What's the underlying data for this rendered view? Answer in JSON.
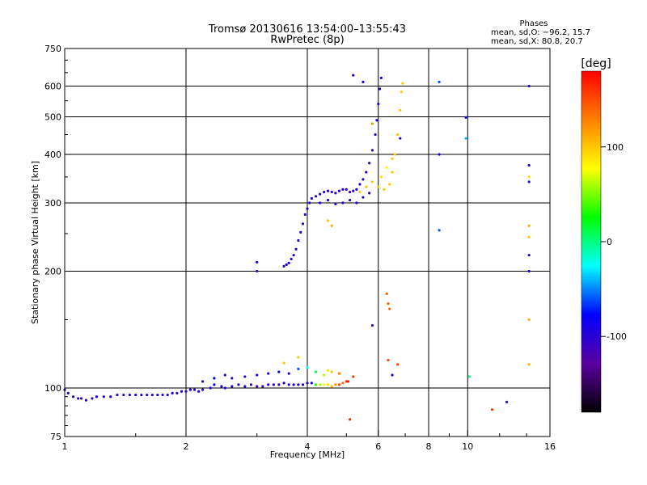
{
  "chart_data": {
    "type": "scatter",
    "title": "Tromsø 20130616 13:54:00–13:55:43",
    "subtitle": "RwPretec (8p)",
    "xlabel": "Frequency [MHz]",
    "ylabel": "Stationary phase Virtual Height [km]",
    "x_scale": "log",
    "y_scale": "log",
    "xlim": [
      1,
      16
    ],
    "ylim": [
      75,
      750
    ],
    "x_ticks": [
      1,
      2,
      4,
      6,
      8,
      10,
      16
    ],
    "y_ticks": [
      75,
      100,
      200,
      300,
      400,
      500,
      600,
      750
    ],
    "grid": true,
    "phases_box": {
      "title": "Phases",
      "line1": "mean, sd,O: −96.2, 15.7",
      "line2": "mean, sd,X:  80.8, 20.7"
    },
    "colorbar": {
      "label": "[deg]",
      "range": [
        -180,
        180
      ],
      "ticks": [
        100,
        0,
        -100
      ],
      "colors": [
        "#000000",
        "#5a00a0",
        "#0000ff",
        "#00ffff",
        "#00ff00",
        "#ffff00",
        "#ff8000",
        "#ff0000"
      ]
    },
    "series": [
      {
        "color_by": "phase_deg",
        "points": [
          [
            1.0,
            99,
            -100
          ],
          [
            1.02,
            97,
            -100
          ],
          [
            1.05,
            95,
            -100
          ],
          [
            1.08,
            94,
            -100
          ],
          [
            1.1,
            94,
            -100
          ],
          [
            1.13,
            93,
            -100
          ],
          [
            1.17,
            94,
            -100
          ],
          [
            1.2,
            95,
            -100
          ],
          [
            1.25,
            95,
            -100
          ],
          [
            1.3,
            95,
            -100
          ],
          [
            1.35,
            96,
            -100
          ],
          [
            1.4,
            96,
            -100
          ],
          [
            1.45,
            96,
            -100
          ],
          [
            1.5,
            96,
            -100
          ],
          [
            1.55,
            96,
            -100
          ],
          [
            1.6,
            96,
            -100
          ],
          [
            1.65,
            96,
            -100
          ],
          [
            1.7,
            96,
            -100
          ],
          [
            1.75,
            96,
            -100
          ],
          [
            1.8,
            96,
            -100
          ],
          [
            1.85,
            97,
            -100
          ],
          [
            1.9,
            97,
            -100
          ],
          [
            1.95,
            98,
            -100
          ],
          [
            2.0,
            98,
            -100
          ],
          [
            2.05,
            99,
            -100
          ],
          [
            2.1,
            99,
            -100
          ],
          [
            2.15,
            98,
            -90
          ],
          [
            2.2,
            99,
            -100
          ],
          [
            2.3,
            100,
            -100
          ],
          [
            2.35,
            102,
            -80
          ],
          [
            2.45,
            101,
            -100
          ],
          [
            2.5,
            100,
            -95
          ],
          [
            2.6,
            101,
            -90
          ],
          [
            2.7,
            102,
            -100
          ],
          [
            2.8,
            101,
            -100
          ],
          [
            2.9,
            102,
            -100
          ],
          [
            3.0,
            101,
            -110
          ],
          [
            3.1,
            101,
            -100
          ],
          [
            3.2,
            102,
            -90
          ],
          [
            3.3,
            102,
            -100
          ],
          [
            3.4,
            102,
            -100
          ],
          [
            3.5,
            103,
            -100
          ],
          [
            3.6,
            102,
            -100
          ],
          [
            3.7,
            102,
            -100
          ],
          [
            3.8,
            102,
            -100
          ],
          [
            3.9,
            102,
            -95
          ],
          [
            4.0,
            103,
            -100
          ],
          [
            4.1,
            103,
            -90
          ],
          [
            4.2,
            102,
            30
          ],
          [
            4.3,
            102,
            60
          ],
          [
            4.4,
            102,
            80
          ],
          [
            4.5,
            102,
            90
          ],
          [
            4.6,
            101,
            100
          ],
          [
            4.7,
            102,
            120
          ],
          [
            4.8,
            102,
            150
          ],
          [
            4.9,
            103,
            130
          ],
          [
            5.0,
            104,
            160
          ],
          [
            5.05,
            104,
            170
          ],
          [
            5.1,
            83,
            160
          ],
          [
            2.2,
            104,
            -100
          ],
          [
            2.35,
            106,
            -80
          ],
          [
            2.5,
            108,
            -90
          ],
          [
            2.6,
            106,
            -100
          ],
          [
            2.8,
            107,
            -100
          ],
          [
            3.0,
            108,
            -100
          ],
          [
            3.2,
            109,
            -100
          ],
          [
            3.4,
            110,
            -80
          ],
          [
            3.6,
            109,
            -100
          ],
          [
            3.8,
            112,
            -60
          ],
          [
            4.0,
            113,
            -20
          ],
          [
            4.2,
            110,
            10
          ],
          [
            4.4,
            108,
            60
          ],
          [
            4.6,
            110,
            100
          ],
          [
            4.8,
            109,
            130
          ],
          [
            3.5,
            116,
            100
          ],
          [
            3.8,
            120,
            100
          ],
          [
            4.5,
            111,
            90
          ],
          [
            5.2,
            107,
            160
          ],
          [
            3.0,
            200,
            -110
          ],
          [
            3.0,
            211,
            -100
          ],
          [
            3.5,
            206,
            -100
          ],
          [
            3.55,
            208,
            -100
          ],
          [
            3.6,
            210,
            -100
          ],
          [
            3.65,
            215,
            -100
          ],
          [
            3.7,
            220,
            -100
          ],
          [
            3.75,
            228,
            -100
          ],
          [
            3.8,
            240,
            -100
          ],
          [
            3.85,
            252,
            -100
          ],
          [
            3.9,
            265,
            -100
          ],
          [
            3.95,
            280,
            -100
          ],
          [
            4.0,
            290,
            -100
          ],
          [
            4.05,
            300,
            -100
          ],
          [
            4.1,
            308,
            -100
          ],
          [
            4.2,
            312,
            -100
          ],
          [
            4.3,
            316,
            -100
          ],
          [
            4.4,
            320,
            -100
          ],
          [
            4.5,
            322,
            -100
          ],
          [
            4.6,
            320,
            -100
          ],
          [
            4.7,
            318,
            -100
          ],
          [
            4.8,
            322,
            -100
          ],
          [
            4.9,
            325,
            -100
          ],
          [
            5.0,
            325,
            -100
          ],
          [
            5.1,
            320,
            -100
          ],
          [
            5.2,
            322,
            -100
          ],
          [
            5.3,
            325,
            -100
          ],
          [
            5.4,
            335,
            -100
          ],
          [
            5.5,
            345,
            -100
          ],
          [
            5.6,
            360,
            -100
          ],
          [
            5.7,
            380,
            -100
          ],
          [
            5.8,
            410,
            -100
          ],
          [
            5.9,
            450,
            -100
          ],
          [
            5.95,
            490,
            -100
          ],
          [
            6.0,
            540,
            -100
          ],
          [
            6.05,
            590,
            -100
          ],
          [
            6.1,
            630,
            -100
          ],
          [
            4.3,
            300,
            -100
          ],
          [
            4.5,
            305,
            -100
          ],
          [
            4.7,
            298,
            -100
          ],
          [
            4.9,
            300,
            -100
          ],
          [
            5.1,
            305,
            -100
          ],
          [
            5.3,
            300,
            -100
          ],
          [
            5.5,
            310,
            -100
          ],
          [
            5.7,
            318,
            -100
          ],
          [
            5.4,
            320,
            100
          ],
          [
            5.6,
            330,
            100
          ],
          [
            5.8,
            340,
            100
          ],
          [
            6.0,
            330,
            100
          ],
          [
            6.2,
            325,
            100
          ],
          [
            6.4,
            335,
            100
          ],
          [
            6.5,
            360,
            100
          ],
          [
            6.6,
            400,
            100
          ],
          [
            6.7,
            450,
            100
          ],
          [
            6.8,
            520,
            100
          ],
          [
            6.85,
            580,
            100
          ],
          [
            6.9,
            610,
            100
          ],
          [
            6.1,
            350,
            90
          ],
          [
            6.3,
            370,
            80
          ],
          [
            6.5,
            390,
            100
          ],
          [
            4.5,
            270,
            100
          ],
          [
            4.6,
            262,
            110
          ],
          [
            5.2,
            640,
            -100
          ],
          [
            5.5,
            615,
            -100
          ],
          [
            5.8,
            480,
            120
          ],
          [
            5.8,
            145,
            -100
          ],
          [
            6.3,
            175,
            140
          ],
          [
            6.35,
            165,
            140
          ],
          [
            6.4,
            160,
            140
          ],
          [
            6.35,
            118,
            150
          ],
          [
            6.5,
            108,
            -100
          ],
          [
            6.7,
            115,
            150
          ],
          [
            6.8,
            440,
            -100
          ],
          [
            8.5,
            615,
            -60
          ],
          [
            8.5,
            400,
            -90
          ],
          [
            8.5,
            255,
            -60
          ],
          [
            9.9,
            498,
            -80
          ],
          [
            9.9,
            440,
            -40
          ],
          [
            10.1,
            107,
            0
          ],
          [
            11.5,
            88,
            160
          ],
          [
            12.5,
            92,
            -100
          ],
          [
            14.2,
            600,
            -100
          ],
          [
            14.2,
            375,
            -100
          ],
          [
            14.2,
            350,
            90
          ],
          [
            14.2,
            340,
            -100
          ],
          [
            14.2,
            262,
            110
          ],
          [
            14.2,
            245,
            100
          ],
          [
            14.2,
            220,
            -100
          ],
          [
            14.2,
            200,
            -100
          ],
          [
            14.2,
            150,
            110
          ],
          [
            14.2,
            115,
            110
          ]
        ]
      }
    ]
  }
}
